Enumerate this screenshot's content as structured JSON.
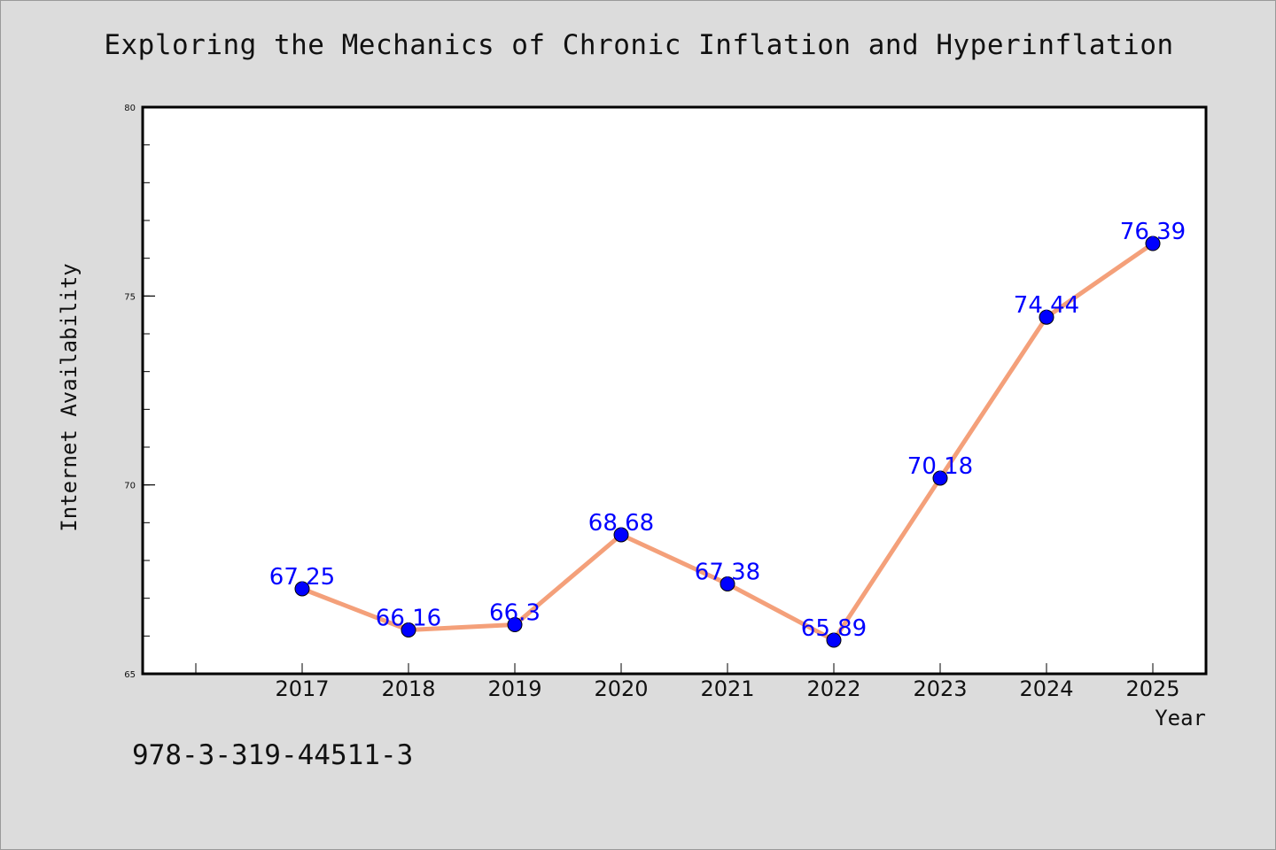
{
  "chart_data": {
    "type": "line",
    "title": "Exploring the Mechanics of Chronic Inflation and Hyperinflation",
    "xlabel": "Year",
    "ylabel": "Internet Availability",
    "categories": [
      "2017",
      "2018",
      "2019",
      "2020",
      "2021",
      "2022",
      "2023",
      "2024",
      "2025"
    ],
    "series": [
      {
        "values": [
          67.25,
          66.16,
          66.3,
          68.68,
          67.38,
          65.89,
          70.18,
          74.44,
          76.39
        ],
        "labels": [
          "67.25",
          "66.16",
          "66.3",
          "68.68",
          "67.38",
          "65.89",
          "70.18",
          "74.44",
          "76.39"
        ]
      }
    ],
    "ylim": [
      65,
      80
    ],
    "yticks": [
      65,
      70,
      75,
      80
    ],
    "grid": false,
    "line_color": "#f4a07a",
    "marker_color": "#0000ff",
    "label_color": "#0000ff",
    "background_color": "#dcdcdc",
    "plot_background_color": "#ffffff"
  },
  "footer": {
    "isbn": "978-3-319-44511-3"
  }
}
